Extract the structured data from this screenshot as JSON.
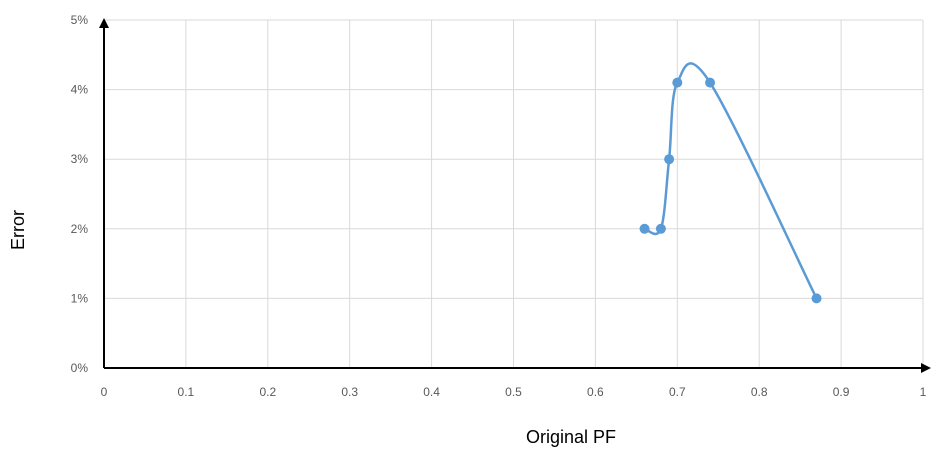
{
  "chart_data": {
    "type": "line",
    "title": "",
    "xlabel": "Original PF",
    "ylabel": "Error",
    "x_ticks": [
      "0",
      "0.1",
      "0.2",
      "0.3",
      "0.4",
      "0.5",
      "0.6",
      "0.7",
      "0.8",
      "0.9",
      "1"
    ],
    "y_ticks": [
      "0%",
      "1%",
      "2%",
      "3%",
      "4%",
      "5%"
    ],
    "xlim": [
      0,
      1
    ],
    "ylim": [
      0,
      0.05
    ],
    "grid": true,
    "smooth": true,
    "series": [
      {
        "color": "#5b9bd5",
        "points": [
          {
            "x": 0.66,
            "y": 0.02
          },
          {
            "x": 0.68,
            "y": 0.02
          },
          {
            "x": 0.69,
            "y": 0.03
          },
          {
            "x": 0.7,
            "y": 0.041
          },
          {
            "x": 0.74,
            "y": 0.041
          },
          {
            "x": 0.87,
            "y": 0.01
          }
        ]
      }
    ]
  }
}
